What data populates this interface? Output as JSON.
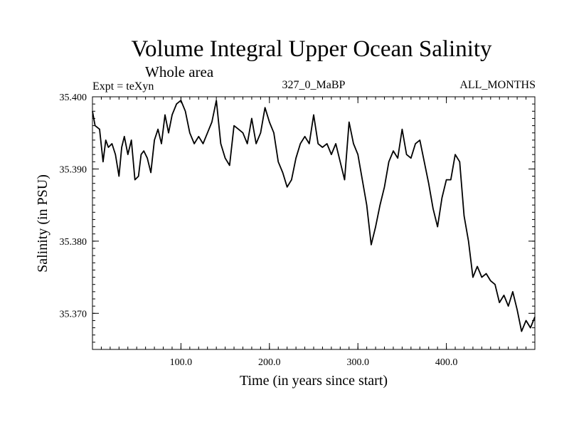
{
  "chart_data": {
    "type": "line",
    "title": "Volume Integral Upper Ocean Salinity",
    "subtitle": "Whole area",
    "expt_label": "Expt = teXyn",
    "run_label": "327_0_MaBP",
    "months_label": "ALL_MONTHS",
    "xlabel": "Time (in years since start)",
    "ylabel": "Salinity (in PSU)",
    "xlim": [
      0,
      500
    ],
    "ylim": [
      35.365,
      35.4
    ],
    "xticks": [
      100,
      200,
      300,
      400
    ],
    "xtick_labels": [
      "100.0",
      "200.0",
      "300.0",
      "400.0"
    ],
    "yticks": [
      35.37,
      35.38,
      35.39,
      35.4
    ],
    "ytick_labels": [
      "35.370",
      "35.380",
      "35.390",
      "35.400"
    ],
    "grid": false,
    "line_color": "#000000",
    "series": [
      {
        "x": [
          0,
          3,
          8,
          12,
          15,
          18,
          22,
          26,
          30,
          33,
          36,
          40,
          44,
          48,
          52,
          55,
          58,
          62,
          66,
          70,
          74,
          78,
          82,
          86,
          90,
          95,
          100,
          105,
          110,
          115,
          120,
          125,
          130,
          135,
          140,
          145,
          150,
          155,
          160,
          165,
          170,
          175,
          180,
          185,
          190,
          195,
          200,
          205,
          210,
          215,
          220,
          225,
          230,
          235,
          240,
          245,
          250,
          255,
          260,
          265,
          270,
          275,
          280,
          285,
          290,
          295,
          300,
          305,
          310,
          315,
          320,
          325,
          330,
          335,
          340,
          345,
          350,
          355,
          360,
          365,
          370,
          375,
          380,
          385,
          390,
          395,
          400,
          405,
          410,
          415,
          420,
          425,
          430,
          435,
          440,
          445,
          450,
          455,
          460,
          465,
          470,
          475,
          480,
          485,
          490,
          495,
          500
        ],
        "y": [
          35.398,
          35.396,
          35.3955,
          35.391,
          35.394,
          35.393,
          35.3935,
          35.392,
          35.389,
          35.393,
          35.3945,
          35.392,
          35.394,
          35.3885,
          35.389,
          35.392,
          35.3925,
          35.3915,
          35.3895,
          35.394,
          35.3955,
          35.3935,
          35.3975,
          35.395,
          35.3975,
          35.399,
          35.3995,
          35.398,
          35.395,
          35.3935,
          35.3945,
          35.3935,
          35.395,
          35.3965,
          35.3995,
          35.3935,
          35.3915,
          35.3905,
          35.396,
          35.3955,
          35.395,
          35.3935,
          35.397,
          35.3935,
          35.395,
          35.3985,
          35.3965,
          35.395,
          35.391,
          35.3895,
          35.3875,
          35.3885,
          35.3915,
          35.3935,
          35.3945,
          35.3935,
          35.3975,
          35.3935,
          35.393,
          35.3935,
          35.392,
          35.3935,
          35.391,
          35.3885,
          35.3965,
          35.3935,
          35.392,
          35.3885,
          35.385,
          35.3795,
          35.382,
          35.385,
          35.3875,
          35.391,
          35.3925,
          35.3915,
          35.3955,
          35.392,
          35.3915,
          35.3935,
          35.394,
          35.391,
          35.388,
          35.3845,
          35.382,
          35.386,
          35.3885,
          35.3885,
          35.392,
          35.391,
          35.3835,
          35.38,
          35.375,
          35.3765,
          35.375,
          35.3755,
          35.3745,
          35.374,
          35.3715,
          35.3725,
          35.371,
          35.373,
          35.3705,
          35.3675,
          35.369,
          35.368,
          35.3695
        ]
      }
    ]
  }
}
